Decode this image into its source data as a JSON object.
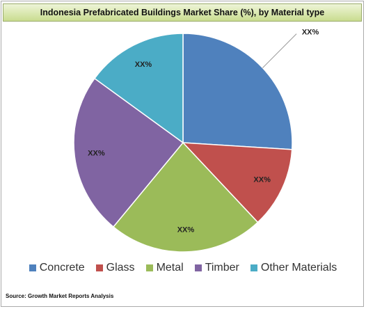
{
  "chart_data": {
    "type": "pie",
    "title": "Indonesia Prefabricated Buildings Market  Share (%), by Material type",
    "categories": [
      "Concrete",
      "Glass",
      "Metal",
      "Timber",
      "Other Materials"
    ],
    "values": [
      26,
      12,
      23,
      24,
      15
    ],
    "slice_labels": [
      "XX%",
      "XX%",
      "XX%",
      "XX%",
      "XX%"
    ],
    "colors": [
      "#4f81bd",
      "#c0504d",
      "#9bbb59",
      "#8064a2",
      "#4bacc6"
    ],
    "legend": "bottom",
    "source": "Source: Growth Market Reports Analysis"
  }
}
